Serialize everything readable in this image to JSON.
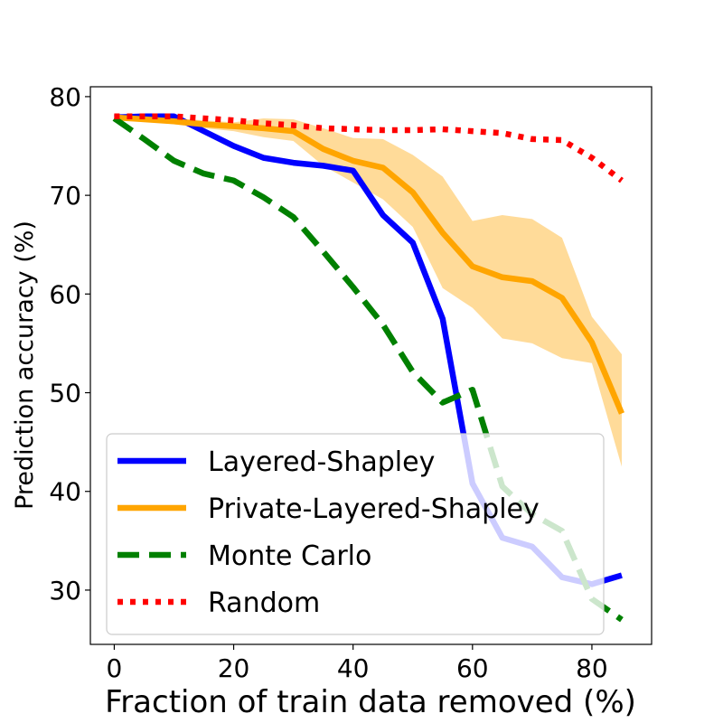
{
  "chart_data": {
    "type": "line",
    "title": "",
    "xlabel": "Fraction of train data removed (%)",
    "ylabel": "Prediction accuracy (%)",
    "xlim": [
      -4,
      90
    ],
    "ylim": [
      24.5,
      81
    ],
    "xticks": [
      0,
      20,
      40,
      60,
      80
    ],
    "yticks": [
      30,
      40,
      50,
      60,
      70,
      80
    ],
    "legend_position": "lower-left",
    "x": [
      0,
      5,
      10,
      15,
      20,
      25,
      30,
      35,
      40,
      45,
      50,
      55,
      60,
      65,
      70,
      75,
      80,
      85
    ],
    "series": [
      {
        "name": "Layered-Shapley",
        "color": "#0000ff",
        "style": "solid",
        "values": [
          77.9,
          78.0,
          78.0,
          76.5,
          75.0,
          73.8,
          73.3,
          73.0,
          72.5,
          68.0,
          65.2,
          57.5,
          40.8,
          35.3,
          34.4,
          31.3,
          30.6,
          31.5
        ]
      },
      {
        "name": "Private-Layered-Shapley",
        "color": "#ffa500",
        "style": "solid",
        "values": [
          77.9,
          77.7,
          77.5,
          77.2,
          77.0,
          76.8,
          76.5,
          74.7,
          73.5,
          72.8,
          70.3,
          66.2,
          62.8,
          61.7,
          61.3,
          59.6,
          55.1,
          47.9
        ],
        "band_upper": [
          78.0,
          77.9,
          77.8,
          77.6,
          77.4,
          77.8,
          77.7,
          76.8,
          75.8,
          75.7,
          74.1,
          71.9,
          67.4,
          68.0,
          67.6,
          65.7,
          57.7,
          53.9
        ],
        "band_lower": [
          77.8,
          77.5,
          77.2,
          76.8,
          76.5,
          75.9,
          75.5,
          73.0,
          71.3,
          69.6,
          66.8,
          60.6,
          58.6,
          55.5,
          55.0,
          53.5,
          53.0,
          42.5
        ]
      },
      {
        "name": "Monte Carlo",
        "color": "#008000",
        "style": "dashed",
        "values": [
          77.8,
          75.7,
          73.5,
          72.2,
          71.5,
          69.8,
          67.8,
          64.3,
          60.7,
          56.9,
          52.1,
          49.0,
          50.3,
          40.5,
          37.7,
          36.0,
          29.1,
          27.0
        ]
      },
      {
        "name": "Random",
        "color": "#ff0000",
        "style": "dotted",
        "values": [
          78.0,
          78.0,
          78.0,
          77.8,
          77.6,
          77.3,
          77.1,
          76.8,
          76.7,
          76.6,
          76.6,
          76.7,
          76.5,
          76.3,
          75.7,
          75.6,
          73.8,
          71.5
        ]
      }
    ]
  }
}
